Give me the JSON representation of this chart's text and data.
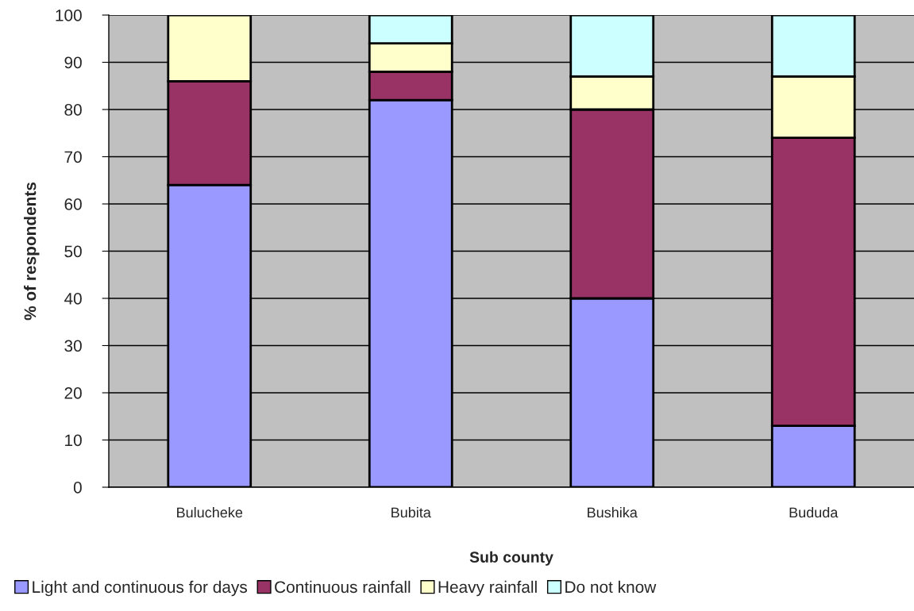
{
  "chart_data": {
    "type": "bar",
    "stacked": true,
    "xlabel": "Sub county",
    "ylabel": "% of respondents",
    "categories": [
      "Bulucheke",
      "Bubita",
      "Bushika",
      "Bududa"
    ],
    "series": [
      {
        "name": "Light and continuous for days",
        "color": "#9999ff",
        "values": [
          64,
          82,
          40,
          13
        ]
      },
      {
        "name": "Continuous rainfall",
        "color": "#993366",
        "values": [
          22,
          6,
          40,
          61
        ]
      },
      {
        "name": "Heavy rainfall",
        "color": "#ffffcc",
        "values": [
          14,
          6,
          7,
          13
        ]
      },
      {
        "name": "Do not know",
        "color": "#ccffff",
        "values": [
          null,
          6,
          13,
          13
        ]
      }
    ],
    "ylim": [
      0,
      100
    ],
    "yticks": [
      0,
      10,
      20,
      30,
      40,
      50,
      60,
      70,
      80,
      90,
      100
    ],
    "grid": "y",
    "legend": "bottom"
  }
}
